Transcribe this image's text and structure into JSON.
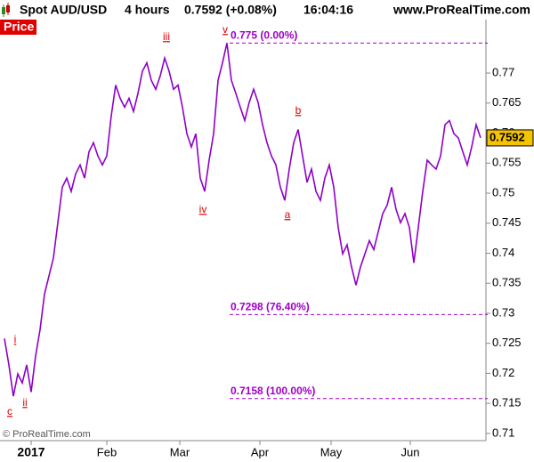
{
  "chart_data": {
    "type": "line",
    "title": "Spot AUD/USD",
    "timeframe": "4 hours",
    "quote": "0.7592 (+0.08%)",
    "time": "16:04:16",
    "site": "www.ProRealTime.com",
    "panel_label": "Price",
    "copyright": "© ProRealTime.com",
    "last_price": 0.7592,
    "color": "#8e00c8",
    "series": [
      {
        "name": "Price",
        "color": "#8e00c8",
        "values": [
          0.7258,
          0.7214,
          0.7162,
          0.7199,
          0.7184,
          0.7214,
          0.7169,
          0.7229,
          0.7273,
          0.7332,
          0.7362,
          0.7392,
          0.7451,
          0.751,
          0.7525,
          0.7503,
          0.7532,
          0.7547,
          0.7525,
          0.7569,
          0.7584,
          0.7562,
          0.7547,
          0.7562,
          0.7629,
          0.768,
          0.7658,
          0.7643,
          0.7658,
          0.7636,
          0.7666,
          0.7703,
          0.7717,
          0.7688,
          0.7673,
          0.7695,
          0.7725,
          0.7703,
          0.7673,
          0.768,
          0.7643,
          0.7599,
          0.7577,
          0.7599,
          0.7525,
          0.7503,
          0.7555,
          0.7599,
          0.7688,
          0.7717,
          0.775,
          0.7688,
          0.7666,
          0.7643,
          0.7621,
          0.7651,
          0.7673,
          0.7651,
          0.7614,
          0.7584,
          0.7562,
          0.7547,
          0.751,
          0.7488,
          0.754,
          0.7584,
          0.7606,
          0.7562,
          0.7518,
          0.754,
          0.7503,
          0.7488,
          0.7525,
          0.7547,
          0.751,
          0.7443,
          0.7399,
          0.7414,
          0.7377,
          0.7347,
          0.7377,
          0.7399,
          0.7421,
          0.7406,
          0.7436,
          0.7466,
          0.748,
          0.751,
          0.7473,
          0.7451,
          0.7466,
          0.7443,
          0.7384,
          0.7443,
          0.7503,
          0.7555,
          0.7547,
          0.754,
          0.7562,
          0.7614,
          0.7621,
          0.7599,
          0.7592,
          0.7569,
          0.7547,
          0.7577,
          0.7614,
          0.7592
        ]
      }
    ],
    "xlim": [
      -1,
      108
    ],
    "xticks": [
      {
        "value": 6,
        "label": "2017"
      },
      {
        "value": 23,
        "label": "Feb"
      },
      {
        "value": 39.4,
        "label": "Mar"
      },
      {
        "value": 57.4,
        "label": "Apr"
      },
      {
        "value": 73.4,
        "label": "May"
      },
      {
        "value": 91.2,
        "label": "Jun"
      }
    ],
    "ylim": [
      0.7091,
      0.7789
    ],
    "yticks": [
      0.71,
      0.715,
      0.72,
      0.725,
      0.73,
      0.735,
      0.74,
      0.745,
      0.75,
      0.755,
      0.76,
      0.765,
      0.77
    ],
    "fib_levels": [
      {
        "value": 0.775,
        "label": "0.775 (0.00%)"
      },
      {
        "value": 0.7298,
        "label": "0.7298 (76.40%)"
      },
      {
        "value": 0.7158,
        "label": "0.7158 (100.00%)"
      }
    ],
    "wave_labels": [
      "i",
      "ii",
      "iii",
      "iv",
      "v",
      "a",
      "b",
      "c"
    ]
  }
}
